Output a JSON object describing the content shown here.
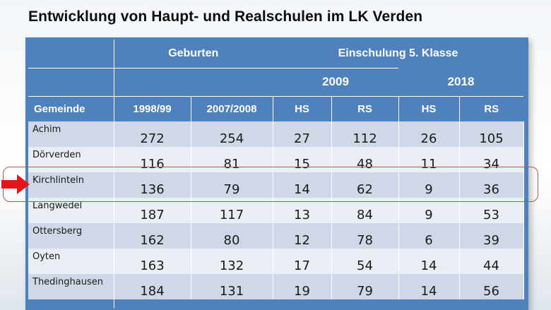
{
  "title": "Entwicklung von Haupt- und Realschulen im LK Verden",
  "header": {
    "geburten": "Geburten",
    "einschulung": "Einschulung 5. Klasse",
    "year_2009": "2009",
    "year_2018": "2018",
    "gemeinde": "Gemeinde",
    "col_1998": "1998/99",
    "col_2007": "2007/2008",
    "hs_2009": "HS",
    "rs_2009": "RS",
    "hs_2018": "HS",
    "rs_2018": "RS"
  },
  "rows": [
    {
      "name": "Achim",
      "b1998": "272",
      "b2007": "254",
      "hs2009": "27",
      "rs2009": "112",
      "hs2018": "26",
      "rs2018": "105"
    },
    {
      "name": "Dörverden",
      "b1998": "116",
      "b2007": "81",
      "hs2009": "15",
      "rs2009": "48",
      "hs2018": "11",
      "rs2018": "34"
    },
    {
      "name": "Kirchlinteln",
      "b1998": "136",
      "b2007": "79",
      "hs2009": "14",
      "rs2009": "62",
      "hs2018": "9",
      "rs2018": "36"
    },
    {
      "name": "Langwedel",
      "b1998": "187",
      "b2007": "117",
      "hs2009": "13",
      "rs2009": "84",
      "hs2018": "9",
      "rs2018": "53"
    },
    {
      "name": "Ottersberg",
      "b1998": "162",
      "b2007": "80",
      "hs2009": "12",
      "rs2009": "78",
      "hs2018": "6",
      "rs2018": "39"
    },
    {
      "name": "Oyten",
      "b1998": "163",
      "b2007": "132",
      "hs2009": "17",
      "rs2009": "54",
      "hs2018": "14",
      "rs2018": "44"
    },
    {
      "name": "Thedinghausen",
      "b1998": "184",
      "b2007": "131",
      "hs2009": "19",
      "rs2009": "79",
      "hs2018": "14",
      "rs2018": "56"
    }
  ],
  "colors": {
    "header_blue": "#4f81bd",
    "row_dark": "#d0d8e8",
    "row_light": "#e9edf4",
    "highlight_red": "#c0504d",
    "arrow_red": "#e8141b"
  },
  "highlighted_row": "Kirchlinteln",
  "icons": {
    "pointer": "red-arrow-icon"
  }
}
